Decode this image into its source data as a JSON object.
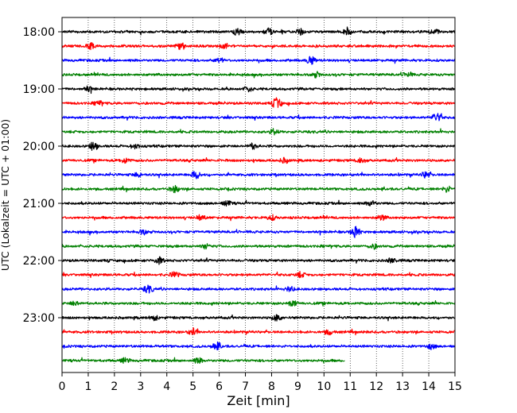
{
  "chart_data": {
    "type": "line",
    "title": "",
    "xlabel": "Zeit  [min]",
    "ylabel": "UTC (Lokalzeit = UTC + 01:00)",
    "x_ticks": [
      0,
      1,
      2,
      3,
      4,
      5,
      6,
      7,
      8,
      9,
      10,
      11,
      12,
      13,
      14,
      15
    ],
    "xlim": [
      0,
      15
    ],
    "y_tick_labels": [
      "18:00",
      "19:00",
      "20:00",
      "21:00",
      "22:00",
      "23:00"
    ],
    "grid": "vertical dotted lines at each minute",
    "trace_interval_min": 15,
    "colors_cycle": [
      "#000000",
      "#ff0000",
      "#0000ff",
      "#008000"
    ],
    "traces": [
      {
        "start": "18:00",
        "color": "#000000",
        "end_min": 15,
        "bursts": [
          {
            "t": 6.7,
            "a": 4
          },
          {
            "t": 7.9,
            "a": 4
          },
          {
            "t": 9.1,
            "a": 4
          },
          {
            "t": 10.9,
            "a": 3.5
          },
          {
            "t": 14.2,
            "a": 3.5
          }
        ]
      },
      {
        "start": "18:15",
        "color": "#ff0000",
        "end_min": 15,
        "bursts": [
          {
            "t": 1.1,
            "a": 4
          },
          {
            "t": 4.5,
            "a": 4
          },
          {
            "t": 6.2,
            "a": 3
          }
        ]
      },
      {
        "start": "18:30",
        "color": "#0000ff",
        "end_min": 15,
        "bursts": [
          {
            "t": 9.5,
            "a": 5
          },
          {
            "t": 6.0,
            "a": 3
          }
        ]
      },
      {
        "start": "18:45",
        "color": "#008000",
        "end_min": 15,
        "bursts": [
          {
            "t": 9.7,
            "a": 3
          },
          {
            "t": 13.2,
            "a": 3
          }
        ]
      },
      {
        "start": "19:00",
        "color": "#000000",
        "end_min": 15,
        "bursts": [
          {
            "t": 1.0,
            "a": 3
          },
          {
            "t": 7.1,
            "a": 3
          }
        ]
      },
      {
        "start": "19:15",
        "color": "#ff0000",
        "end_min": 15,
        "bursts": [
          {
            "t": 8.2,
            "a": 7
          },
          {
            "t": 1.4,
            "a": 2.5
          }
        ]
      },
      {
        "start": "19:30",
        "color": "#0000ff",
        "end_min": 15,
        "bursts": [
          {
            "t": 14.3,
            "a": 6
          }
        ]
      },
      {
        "start": "19:45",
        "color": "#008000",
        "end_min": 15,
        "bursts": [
          {
            "t": 8.1,
            "a": 3
          }
        ]
      },
      {
        "start": "20:00",
        "color": "#000000",
        "end_min": 15,
        "bursts": [
          {
            "t": 1.2,
            "a": 5
          },
          {
            "t": 7.3,
            "a": 3.5
          },
          {
            "t": 2.8,
            "a": 3
          }
        ]
      },
      {
        "start": "20:15",
        "color": "#ff0000",
        "end_min": 15,
        "bursts": [
          {
            "t": 2.4,
            "a": 3
          },
          {
            "t": 8.5,
            "a": 3
          },
          {
            "t": 11.4,
            "a": 3
          }
        ]
      },
      {
        "start": "20:30",
        "color": "#0000ff",
        "end_min": 15,
        "bursts": [
          {
            "t": 5.1,
            "a": 5
          },
          {
            "t": 13.9,
            "a": 4
          },
          {
            "t": 2.9,
            "a": 2.5
          }
        ]
      },
      {
        "start": "20:45",
        "color": "#008000",
        "end_min": 15,
        "bursts": [
          {
            "t": 4.3,
            "a": 4
          },
          {
            "t": 14.7,
            "a": 3.5
          }
        ]
      },
      {
        "start": "21:00",
        "color": "#000000",
        "end_min": 15,
        "bursts": [
          {
            "t": 11.8,
            "a": 3.5
          },
          {
            "t": 6.3,
            "a": 3
          }
        ]
      },
      {
        "start": "21:15",
        "color": "#ff0000",
        "end_min": 15,
        "bursts": [
          {
            "t": 5.3,
            "a": 3
          },
          {
            "t": 8.0,
            "a": 3
          },
          {
            "t": 12.2,
            "a": 3
          }
        ]
      },
      {
        "start": "21:30",
        "color": "#0000ff",
        "end_min": 15,
        "bursts": [
          {
            "t": 11.2,
            "a": 7
          },
          {
            "t": 3.1,
            "a": 3
          }
        ]
      },
      {
        "start": "21:45",
        "color": "#008000",
        "end_min": 15,
        "bursts": [
          {
            "t": 5.5,
            "a": 3
          },
          {
            "t": 11.9,
            "a": 3
          }
        ]
      },
      {
        "start": "22:00",
        "color": "#000000",
        "end_min": 15,
        "bursts": [
          {
            "t": 3.7,
            "a": 4
          },
          {
            "t": 12.6,
            "a": 3
          }
        ]
      },
      {
        "start": "22:15",
        "color": "#ff0000",
        "end_min": 15,
        "bursts": [
          {
            "t": 4.3,
            "a": 3
          },
          {
            "t": 9.1,
            "a": 3
          }
        ]
      },
      {
        "start": "22:30",
        "color": "#0000ff",
        "end_min": 15,
        "bursts": [
          {
            "t": 3.3,
            "a": 4.5
          },
          {
            "t": 8.7,
            "a": 3
          }
        ]
      },
      {
        "start": "22:45",
        "color": "#008000",
        "end_min": 15,
        "bursts": [
          {
            "t": 8.8,
            "a": 4
          },
          {
            "t": 0.5,
            "a": 3
          }
        ]
      },
      {
        "start": "23:00",
        "color": "#000000",
        "end_min": 15,
        "bursts": [
          {
            "t": 8.2,
            "a": 4
          },
          {
            "t": 3.5,
            "a": 3
          }
        ]
      },
      {
        "start": "23:15",
        "color": "#ff0000",
        "end_min": 15,
        "bursts": [
          {
            "t": 5.0,
            "a": 4
          },
          {
            "t": 10.2,
            "a": 3
          }
        ]
      },
      {
        "start": "23:30",
        "color": "#0000ff",
        "end_min": 15,
        "bursts": [
          {
            "t": 5.9,
            "a": 5
          },
          {
            "t": 14.1,
            "a": 3
          }
        ]
      },
      {
        "start": "23:45",
        "color": "#008000",
        "end_min": 10.8,
        "bursts": [
          {
            "t": 2.4,
            "a": 3
          },
          {
            "t": 5.2,
            "a": 3
          }
        ]
      }
    ]
  }
}
